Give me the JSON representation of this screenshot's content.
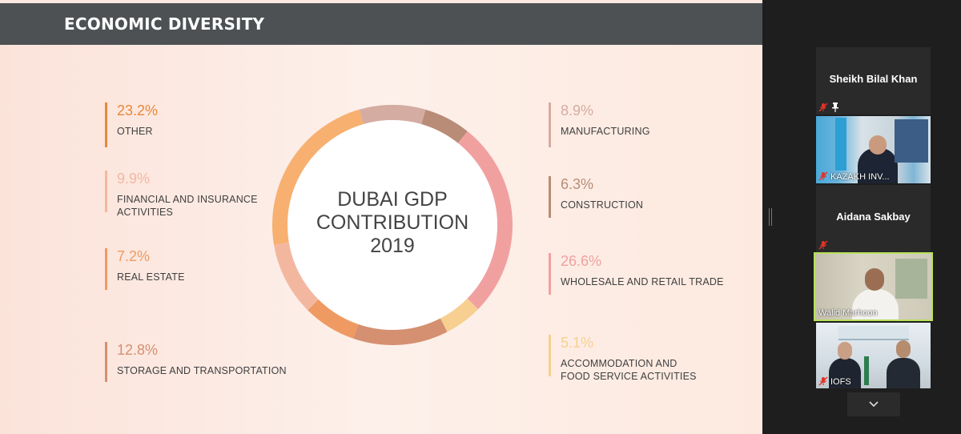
{
  "slide": {
    "title": "ECONOMIC DIVERSITY",
    "center_text": [
      "DUBAI GDP",
      "CONTRIBUTION",
      "2019"
    ],
    "left_items": [
      {
        "pct": "23.2%",
        "label": [
          "OTHER"
        ],
        "color": "#e8883a"
      },
      {
        "pct": "9.9%",
        "label": [
          "FINANCIAL AND INSURANCE",
          "ACTIVITIES"
        ],
        "color": "#f3b7a0"
      },
      {
        "pct": "7.2%",
        "label": [
          "REAL ESTATE"
        ],
        "color": "#ef9a63"
      },
      {
        "pct": "12.8%",
        "label": [
          "STORAGE AND TRANSPORTATION"
        ],
        "color": "#d49070"
      }
    ],
    "right_items": [
      {
        "pct": "8.9%",
        "label": [
          "MANUFACTURING"
        ],
        "color": "#d4aca2"
      },
      {
        "pct": "6.3%",
        "label": [
          "CONSTRUCTION"
        ],
        "color": "#b98c78"
      },
      {
        "pct": "26.6%",
        "label": [
          "WHOLESALE AND RETAIL TRADE"
        ],
        "color": "#f1a0a0"
      },
      {
        "pct": "5.1%",
        "label": [
          "ACCOMMODATION AND",
          "FOOD SERVICE ACTIVITIES"
        ],
        "color": "#f7cf90"
      }
    ]
  },
  "chart_data": {
    "type": "pie",
    "title": "DUBAI GDP CONTRIBUTION 2019",
    "categories": [
      "MANUFACTURING",
      "CONSTRUCTION",
      "WHOLESALE AND RETAIL TRADE",
      "ACCOMMODATION AND FOOD SERVICE ACTIVITIES",
      "STORAGE AND TRANSPORTATION",
      "REAL ESTATE",
      "FINANCIAL AND INSURANCE ACTIVITIES",
      "OTHER"
    ],
    "values": [
      8.9,
      6.3,
      26.6,
      5.1,
      12.8,
      7.2,
      9.9,
      23.2
    ],
    "colors": [
      "#d4aca2",
      "#b98c78",
      "#f1a0a0",
      "#f7cf90",
      "#d49070",
      "#ef9a63",
      "#f3b7a0",
      "#f7b070"
    ],
    "unit": "%"
  },
  "participants": [
    {
      "name": "Sheikh Bilal Khan",
      "kind": "name",
      "muted": true,
      "pinned": true
    },
    {
      "name": "KAZAKH INV...",
      "kind": "video",
      "muted": true
    },
    {
      "name": "Aidana Sakbay",
      "kind": "name",
      "muted": true
    },
    {
      "name": "Walid Marhoon",
      "kind": "video",
      "muted": false,
      "active_speaker": true
    },
    {
      "name": "IOFS",
      "kind": "video",
      "muted": true
    }
  ],
  "icons": {
    "mute": "microphone-muted-icon",
    "pin": "pin-icon",
    "scroll": "chevron-down-icon"
  },
  "accent": {
    "speaker_highlight": "#b9e05b",
    "mute_red": "#e0342a"
  }
}
